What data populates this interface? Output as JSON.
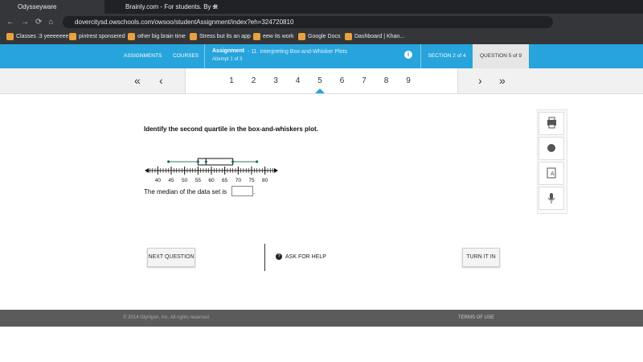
{
  "browser": {
    "tabs": [
      "Odysseyware",
      "Brainly.com - For students. By st"
    ],
    "url": "dovercitysd.owschools.com/owsoo/studentAssignment/index?eh=324720810",
    "bookmarks": [
      "Classes :3 yeeeeeee",
      "pintrest sponsered",
      "other big brain time",
      "Stress but its an app",
      "eew its work",
      "Google Docs",
      "Dashboard | Khan..."
    ]
  },
  "header": {
    "nav": [
      "ASSIGNMENTS",
      "COURSES"
    ],
    "assignment_label": "Assignment",
    "assignment_title": "- 11. Interpreting Box-and-Whisker Plots",
    "attempt": "Attempt 1 of 3",
    "section": "SECTION 2 of 4",
    "question": "QUESTION 5 of 9"
  },
  "pager": {
    "pages": [
      1,
      2,
      3,
      4,
      5,
      6,
      7,
      8,
      9
    ],
    "current": 5
  },
  "question": {
    "prompt": "Identify the second quartile in the box-and-whiskers plot.",
    "answer_prefix": "The median of the data set is",
    "answer_suffix": "."
  },
  "boxplot": {
    "min": 44,
    "q1": 55,
    "median": 58,
    "q3": 68,
    "max": 77,
    "xlim": [
      36,
      84
    ],
    "xticks": [
      40,
      45,
      50,
      55,
      60,
      65,
      70,
      75,
      80
    ],
    "minor_tick_step": 1
  },
  "buttons": {
    "next": "NEXT QUESTION",
    "help": "ASK FOR HELP",
    "turn_in": "TURN IT IN"
  },
  "footer": {
    "copyright": "© 2014 Glynlyon, Inc. All rights reserved.",
    "terms": "TERMS OF USE"
  }
}
